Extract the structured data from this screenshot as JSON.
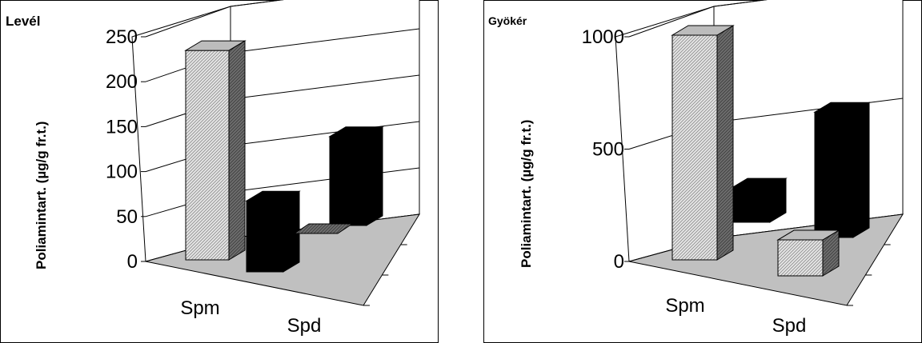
{
  "chart_data": [
    {
      "type": "bar",
      "title": "Levél",
      "ylabel": "Poliamintart. (µg/g fr.t.)",
      "categories": [
        "Spm",
        "Spd"
      ],
      "yticks": [
        "0",
        "50",
        "100",
        "150",
        "200",
        "250"
      ],
      "ylim": [
        0,
        250
      ],
      "series": [
        {
          "values": [
            233,
            0
          ],
          "color": "#d8d8d8",
          "pattern": "diagonal-hatch"
        },
        {
          "values": [
            75,
            94
          ],
          "color": "#000000"
        }
      ],
      "grid": true,
      "floor_color": "#c0c0c0"
    },
    {
      "type": "bar",
      "title": "Gyökér",
      "ylabel": "Poliamintart. (µg/g fr.t.)",
      "categories": [
        "Spm",
        "Spd"
      ],
      "yticks": [
        "0",
        "500",
        "1000"
      ],
      "ylim": [
        0,
        1000
      ],
      "series": [
        {
          "values": [
            1000,
            160
          ],
          "color": "#d8d8d8",
          "pattern": "diagonal-hatch"
        },
        {
          "values": [
            145,
            530
          ],
          "color": "#000000"
        }
      ],
      "grid": true,
      "floor_color": "#c0c0c0"
    }
  ]
}
